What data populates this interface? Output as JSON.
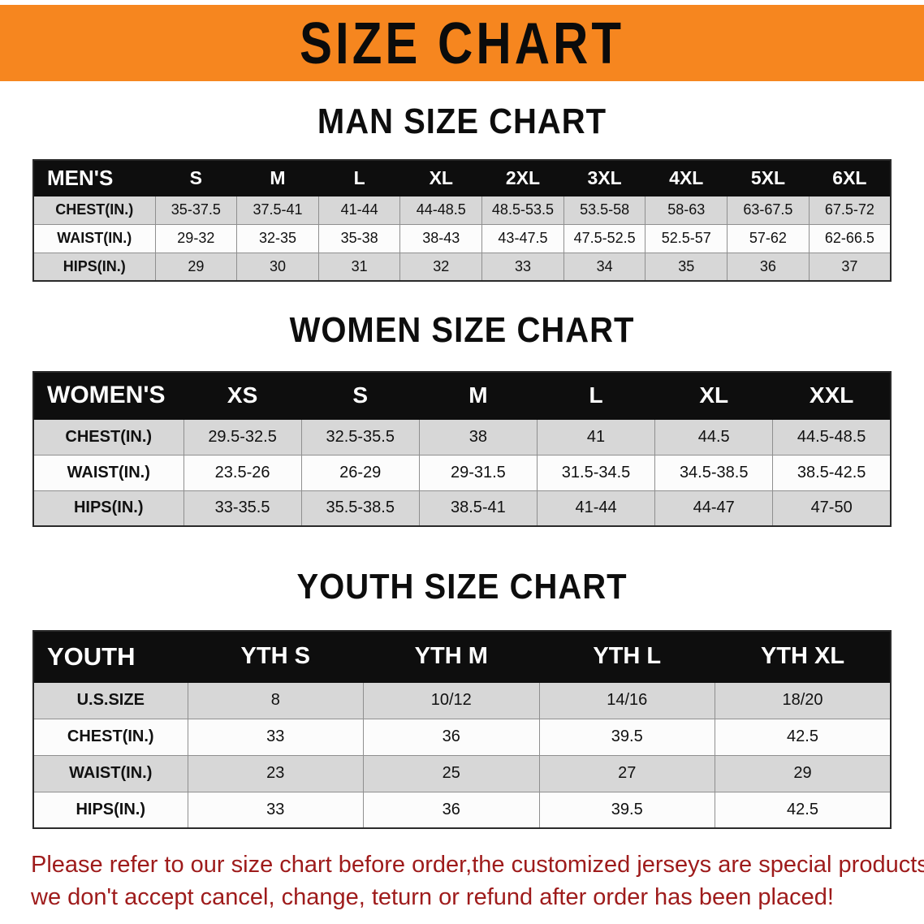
{
  "banner": {
    "title": "SIZE CHART",
    "bg_color": "#f6861f",
    "text_color": "#0b0b0b"
  },
  "sections": [
    {
      "heading": "MAN SIZE CHART",
      "table": {
        "header": [
          "MEN'S",
          "S",
          "M",
          "L",
          "XL",
          "2XL",
          "3XL",
          "4XL",
          "5XL",
          "6XL"
        ],
        "rows": [
          [
            "CHEST(IN.)",
            "35-37.5",
            "37.5-41",
            "41-44",
            "44-48.5",
            "48.5-53.5",
            "53.5-58",
            "58-63",
            "63-67.5",
            "67.5-72"
          ],
          [
            "WAIST(IN.)",
            "29-32",
            "32-35",
            "35-38",
            "38-43",
            "43-47.5",
            "47.5-52.5",
            "52.5-57",
            "57-62",
            "62-66.5"
          ],
          [
            "HIPS(IN.)",
            "29",
            "30",
            "31",
            "32",
            "33",
            "34",
            "35",
            "36",
            "37"
          ]
        ]
      }
    },
    {
      "heading": "WOMEN SIZE CHART",
      "table": {
        "header": [
          "WOMEN'S",
          "XS",
          "S",
          "M",
          "L",
          "XL",
          "XXL"
        ],
        "rows": [
          [
            "CHEST(IN.)",
            "29.5-32.5",
            "32.5-35.5",
            "38",
            "41",
            "44.5",
            "44.5-48.5"
          ],
          [
            "WAIST(IN.)",
            "23.5-26",
            "26-29",
            "29-31.5",
            "31.5-34.5",
            "34.5-38.5",
            "38.5-42.5"
          ],
          [
            "HIPS(IN.)",
            "33-35.5",
            "35.5-38.5",
            "38.5-41",
            "41-44",
            "44-47",
            "47-50"
          ]
        ]
      }
    },
    {
      "heading": "YOUTH SIZE CHART",
      "table": {
        "header": [
          "YOUTH",
          "YTH S",
          "YTH M",
          "YTH L",
          "YTH XL"
        ],
        "rows": [
          [
            "U.S.SIZE",
            "8",
            "10/12",
            "14/16",
            "18/20"
          ],
          [
            "CHEST(IN.)",
            "33",
            "36",
            "39.5",
            "42.5"
          ],
          [
            "WAIST(IN.)",
            "23",
            "25",
            "27",
            "29"
          ],
          [
            "HIPS(IN.)",
            "33",
            "36",
            "39.5",
            "42.5"
          ]
        ]
      }
    }
  ],
  "disclaimer": {
    "line1": "Please refer to our size chart before order,the customized jerseys are special products,",
    "line2": "we don't accept cancel, change, teturn or refund after order has been placed!",
    "color": "#9e1b1b"
  }
}
